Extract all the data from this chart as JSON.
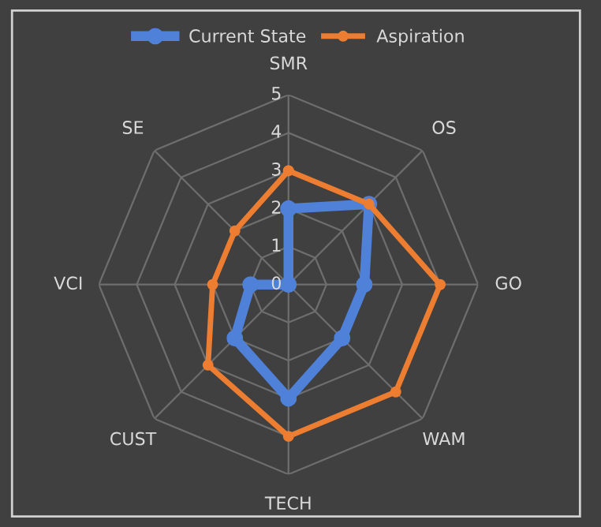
{
  "chart_data": {
    "type": "radar",
    "categories": [
      "SMR",
      "OS",
      "GO",
      "WAM",
      "TECH",
      "CUST",
      "VCI",
      "SE"
    ],
    "series": [
      {
        "name": "Current State",
        "color": "#4f81d9",
        "values": [
          2,
          3,
          2,
          2,
          3,
          2,
          1,
          0
        ]
      },
      {
        "name": "Aspiration",
        "color": "#ed7d31",
        "values": [
          3,
          3,
          4,
          4,
          4,
          3,
          2,
          2
        ]
      }
    ],
    "ylim": [
      0,
      5
    ],
    "yticks": [
      0,
      1,
      2,
      3,
      4,
      5
    ],
    "grid": true,
    "legend": "top",
    "marker": "circle"
  }
}
